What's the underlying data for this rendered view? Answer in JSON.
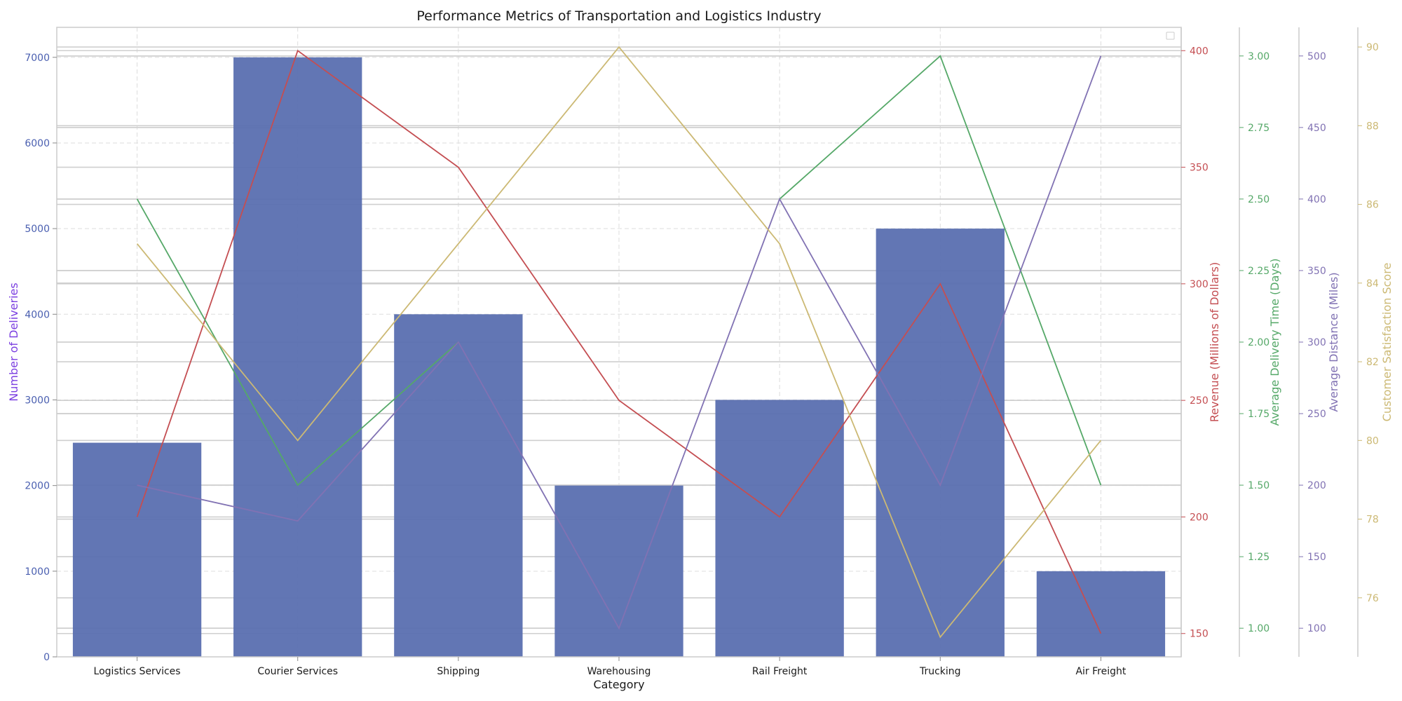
{
  "chart_data": {
    "type": "bar",
    "title": "Performance Metrics of Transportation and Logistics Industry",
    "xlabel": "Category",
    "categories": [
      "Logistics Services",
      "Courier Services",
      "Shipping",
      "Warehousing",
      "Rail Freight",
      "Trucking",
      "Air Freight"
    ],
    "bar_series": {
      "name": "Number of Deliveries",
      "axis_label": "Number of Deliveries",
      "values": [
        2500,
        7000,
        4000,
        2000,
        3000,
        5000,
        1000
      ],
      "color": "#5a6fb0",
      "label_color": "#7b3fe0",
      "tick_color": "#4a5fb0",
      "ylim": [
        0,
        7350
      ],
      "ticks": [
        0,
        1000,
        2000,
        3000,
        4000,
        5000,
        6000,
        7000
      ],
      "tick_labels": [
        "0",
        "1000",
        "2000",
        "3000",
        "4000",
        "5000",
        "6000",
        "7000"
      ]
    },
    "line_series": [
      {
        "name": "Revenue (Millions of Dollars)",
        "axis_label": "Revenue (Millions of Dollars)",
        "values": [
          200,
          400,
          350,
          250,
          200,
          300,
          150
        ],
        "color": "#c44e52",
        "ylim": [
          140,
          410
        ],
        "ticks": [
          150,
          200,
          250,
          300,
          350,
          400
        ],
        "tick_labels": [
          "150",
          "200",
          "250",
          "300",
          "350",
          "400"
        ]
      },
      {
        "name": "Average Delivery Time (Days)",
        "axis_label": "Average Delivery Time (Days)",
        "values": [
          2.5,
          1.5,
          2.0,
          null,
          2.5,
          3.0,
          1.5
        ],
        "color": "#55a868",
        "ylim": [
          0.9,
          3.1
        ],
        "ticks": [
          1.0,
          1.25,
          1.5,
          1.75,
          2.0,
          2.25,
          2.5,
          2.75,
          3.0
        ],
        "tick_labels": [
          "1.00",
          "1.25",
          "1.50",
          "1.75",
          "2.00",
          "2.25",
          "2.50",
          "2.75",
          "3.00"
        ]
      },
      {
        "name": "Average Distance (Miles)",
        "axis_label": "Average Distance (Miles)",
        "values": [
          200,
          175,
          300,
          100,
          400,
          200,
          500
        ],
        "color": "#8172b3",
        "ylim": [
          80,
          520
        ],
        "ticks": [
          100,
          150,
          200,
          250,
          300,
          350,
          400,
          450,
          500
        ],
        "tick_labels": [
          "100",
          "150",
          "200",
          "250",
          "300",
          "350",
          "400",
          "450",
          "500"
        ]
      },
      {
        "name": "Customer Satisfaction Score",
        "axis_label": "Customer Satisfaction Score",
        "values": [
          85,
          80,
          85,
          90,
          85,
          75,
          80
        ],
        "color": "#ccb974",
        "ylim": [
          74.5,
          90.5
        ],
        "ticks": [
          76,
          78,
          80,
          82,
          84,
          86,
          88,
          90
        ],
        "tick_labels": [
          "76",
          "78",
          "80",
          "82",
          "84",
          "86",
          "88",
          "90"
        ]
      }
    ],
    "grid": true,
    "legend": "top-right"
  }
}
